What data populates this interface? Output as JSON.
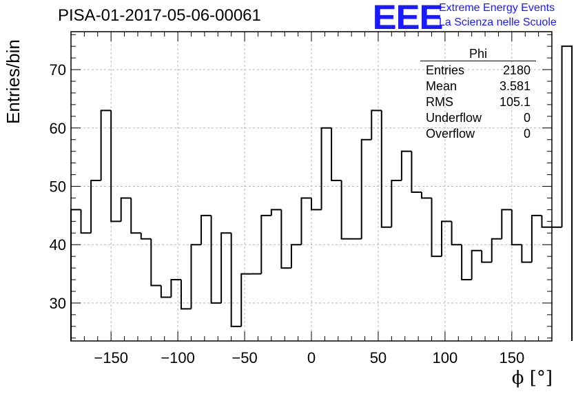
{
  "header": {
    "run_title": "PISA-01-2017-05-06-00061",
    "logo_text": "EEE",
    "logo_line1": "Extreme Energy Events",
    "logo_line2": "La Scienza nelle Scuole"
  },
  "stats_box": {
    "title": "Phi",
    "rows": [
      {
        "label": "Entries",
        "value": "2180"
      },
      {
        "label": "Mean",
        "value": "3.581"
      },
      {
        "label": "RMS",
        "value": "105.1"
      },
      {
        "label": "Underflow",
        "value": "0"
      },
      {
        "label": "Overflow",
        "value": "0"
      }
    ]
  },
  "chart_data": {
    "type": "bar",
    "style": "step-histogram",
    "xlabel": "ϕ [°]",
    "ylabel": "Entries/bin",
    "xlim": [
      -180,
      180
    ],
    "ylim": [
      23.5,
      76.5
    ],
    "bin_width": 7.5,
    "x_ticks": [
      -150,
      -100,
      -50,
      0,
      50,
      100,
      150
    ],
    "x_tick_labels": [
      "−150",
      "−100",
      "−50",
      "0",
      "50",
      "100",
      "150"
    ],
    "y_ticks": [
      30,
      40,
      50,
      60,
      70
    ],
    "y_tick_labels": [
      "30",
      "40",
      "50",
      "60",
      "70"
    ],
    "grid": true,
    "bin_edges_start": -180,
    "values": [
      46,
      42,
      51,
      63,
      44,
      48,
      42,
      41,
      33,
      31,
      34,
      29,
      40,
      45,
      30,
      42,
      26,
      35,
      35,
      45,
      46,
      36,
      40,
      48,
      46,
      60,
      51,
      41,
      41,
      58,
      63,
      43,
      51,
      56,
      49,
      48,
      38,
      44,
      40,
      34,
      39,
      37,
      41,
      46,
      40,
      37,
      45,
      43,
      43,
      74
    ],
    "line_color": "#000000",
    "grid_color": "#b4b4b4"
  }
}
